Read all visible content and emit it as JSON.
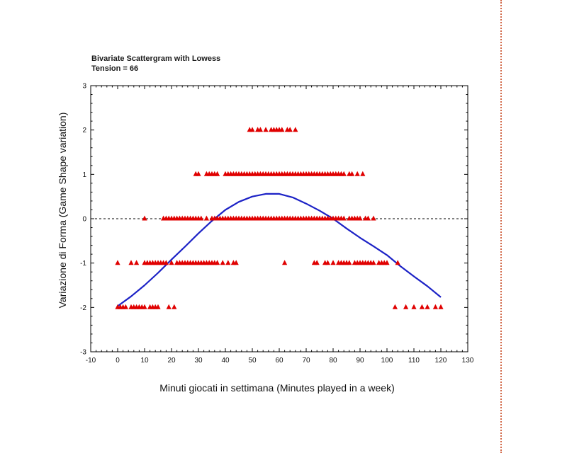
{
  "chart_data": {
    "type": "scatter",
    "title": "Bivariate Scattergram with Lowess",
    "subtitle": "Tension = 66",
    "xlabel": "Minuti giocati in settimana (Minutes played in a week)",
    "ylabel": "Variazione di Forma (Game Shape variation)",
    "xlim": [
      -10,
      130
    ],
    "ylim": [
      -3,
      3
    ],
    "x_ticks": [
      -10,
      0,
      10,
      20,
      30,
      40,
      50,
      60,
      70,
      80,
      90,
      100,
      110,
      120,
      130
    ],
    "y_ticks": [
      -3,
      -2,
      -1,
      0,
      1,
      2,
      3
    ],
    "reference_line": {
      "y": 0,
      "style": "dashed"
    },
    "grid": false,
    "series": [
      {
        "marker": "triangle",
        "color": "#e00000",
        "points": [
          {
            "y": 2,
            "x": [
              49,
              50,
              52,
              53,
              55,
              57,
              58,
              59,
              60,
              61,
              63,
              64,
              66
            ]
          },
          {
            "y": 1,
            "x": [
              29,
              30,
              33,
              34,
              35,
              36,
              37,
              40,
              41,
              42,
              43,
              44,
              45,
              46,
              47,
              48,
              49,
              50,
              51,
              52,
              53,
              54,
              55,
              56,
              57,
              58,
              59,
              60,
              61,
              62,
              63,
              64,
              65,
              66,
              67,
              68,
              69,
              70,
              71,
              72,
              73,
              74,
              75,
              76,
              77,
              78,
              79,
              80,
              81,
              82,
              83,
              84,
              86,
              87,
              89,
              91
            ]
          },
          {
            "y": 0,
            "x": [
              10,
              17,
              18,
              19,
              20,
              21,
              22,
              23,
              24,
              25,
              26,
              27,
              28,
              29,
              30,
              31,
              33,
              35,
              36,
              37,
              38,
              39,
              40,
              41,
              42,
              43,
              44,
              45,
              46,
              47,
              48,
              49,
              50,
              51,
              52,
              53,
              54,
              55,
              56,
              57,
              58,
              59,
              60,
              61,
              62,
              63,
              64,
              65,
              66,
              67,
              68,
              69,
              70,
              71,
              72,
              73,
              74,
              75,
              76,
              77,
              78,
              79,
              80,
              81,
              82,
              83,
              84,
              86,
              87,
              88,
              89,
              90,
              92,
              93,
              95
            ]
          },
          {
            "y": -1,
            "x": [
              0,
              5,
              7,
              10,
              11,
              12,
              13,
              14,
              15,
              16,
              17,
              18,
              20,
              22,
              23,
              24,
              25,
              26,
              27,
              28,
              29,
              30,
              31,
              32,
              33,
              34,
              35,
              36,
              37,
              39,
              41,
              43,
              44,
              62,
              73,
              74,
              77,
              78,
              80,
              82,
              83,
              84,
              85,
              86,
              88,
              89,
              90,
              91,
              92,
              93,
              94,
              95,
              97,
              98,
              99,
              100,
              104
            ]
          },
          {
            "y": -2,
            "x": [
              0,
              1,
              2,
              3,
              5,
              6,
              7,
              8,
              9,
              10,
              12,
              13,
              14,
              15,
              19,
              21,
              103,
              107,
              110,
              113,
              115,
              118,
              120
            ]
          }
        ]
      },
      {
        "name": "Lowess",
        "type": "line",
        "color": "#1c22c6",
        "x": [
          0,
          5,
          10,
          15,
          20,
          25,
          30,
          35,
          40,
          45,
          50,
          55,
          60,
          65,
          70,
          75,
          80,
          85,
          90,
          95,
          100,
          105,
          110,
          115,
          120
        ],
        "y": [
          -1.97,
          -1.75,
          -1.5,
          -1.22,
          -0.92,
          -0.63,
          -0.33,
          -0.05,
          0.2,
          0.38,
          0.5,
          0.56,
          0.56,
          0.48,
          0.34,
          0.18,
          0.0,
          -0.22,
          -0.43,
          -0.62,
          -0.82,
          -1.07,
          -1.3,
          -1.52,
          -1.77
        ]
      }
    ]
  }
}
